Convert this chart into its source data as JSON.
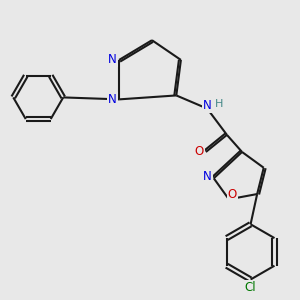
{
  "bg_color": "#e8e8e8",
  "bond_color": "#1a1a1a",
  "bond_width": 1.5,
  "atom_colors": {
    "N": "#0000e0",
    "O": "#cc0000",
    "Cl": "#007700",
    "NH_N": "#0000e0",
    "NH_H": "#448888"
  },
  "font_size": 8.5
}
